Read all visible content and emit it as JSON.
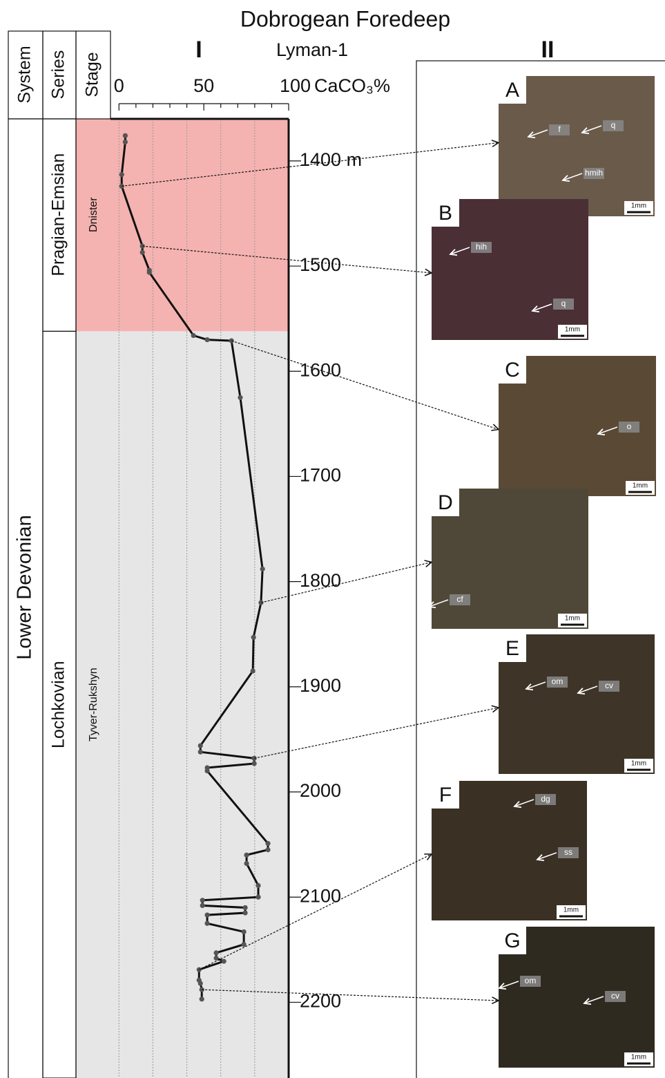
{
  "chart_data": {
    "type": "line",
    "title": "Dobrogean Foredeep",
    "subtitle": "Lyman-1",
    "panel_I": "I",
    "x_label": "CaCO₃%",
    "xlim": [
      -5,
      100
    ],
    "xticks": [
      0,
      50,
      100
    ],
    "x_minor_ticks": [
      10,
      20,
      30,
      40,
      60,
      70,
      80,
      90
    ],
    "grid_lines": [
      20,
      40,
      60,
      80
    ],
    "ylim": [
      1360,
      2272
    ],
    "yticks": [
      {
        "value": 1400,
        "label": "1400 m"
      },
      1500,
      1600,
      1700,
      1800,
      1900,
      2000,
      2100,
      2200
    ],
    "color": "#111111",
    "marker_color": "#555555",
    "x": [
      3.7,
      3.7,
      1.6,
      1.6,
      13.8,
      13.8,
      17.9,
      17.9,
      43.9,
      52,
      66.3,
      71.5,
      84.6,
      83.7,
      79.3,
      78.9,
      48,
      48,
      79.7,
      79.7,
      52,
      52,
      87.8,
      87.8,
      75.2,
      75.2,
      82.1,
      82.1,
      49.2,
      49.2,
      74.4,
      74.4,
      52,
      52,
      73.6,
      73.6,
      57.3,
      57.3,
      61.8,
      47.2,
      47.2,
      48,
      48.8,
      48.8
    ],
    "y": [
      1376,
      1382,
      1413,
      1424,
      1481,
      1487,
      1504,
      1506,
      1566,
      1570,
      1571,
      1625,
      1788,
      1820,
      1853,
      1885,
      1956,
      1962,
      1968,
      1973,
      1977,
      1980,
      2049,
      2055,
      2060,
      2068,
      2089,
      2100,
      2103,
      2108,
      2110,
      2115,
      2117,
      2125,
      2133,
      2145,
      2153,
      2158,
      2161,
      2169,
      2179,
      2182,
      2188,
      2197
    ],
    "stratigraphy": {
      "headers": [
        "System",
        "Series",
        "Stage"
      ],
      "system": "Lower Devonian",
      "units": [
        {
          "series": "Pragian-Emsian",
          "stage": "Dnister",
          "color": "#f4b3b0",
          "top": 1360,
          "base": 1562
        },
        {
          "series": "Lochkovian",
          "stage": "Tyver-Rukshyn",
          "color": "#e6e6e6",
          "top": 1562,
          "base": 2272
        }
      ]
    }
  },
  "panel_II": "II",
  "panels": [
    {
      "letter": "A",
      "labels": [
        "f",
        "q",
        "hmih"
      ],
      "scale": "1mm"
    },
    {
      "letter": "B",
      "labels": [
        "hih",
        "q"
      ],
      "scale": "1mm"
    },
    {
      "letter": "C",
      "labels": [
        "o"
      ],
      "scale": "1mm"
    },
    {
      "letter": "D",
      "labels": [
        "cf"
      ],
      "scale": "1mm"
    },
    {
      "letter": "E",
      "labels": [
        "om",
        "cv"
      ],
      "scale": "1mm"
    },
    {
      "letter": "F",
      "labels": [
        "dg",
        "ss"
      ],
      "scale": "1mm"
    },
    {
      "letter": "G",
      "labels": [
        "om",
        "cv"
      ],
      "scale": "1mm"
    }
  ]
}
